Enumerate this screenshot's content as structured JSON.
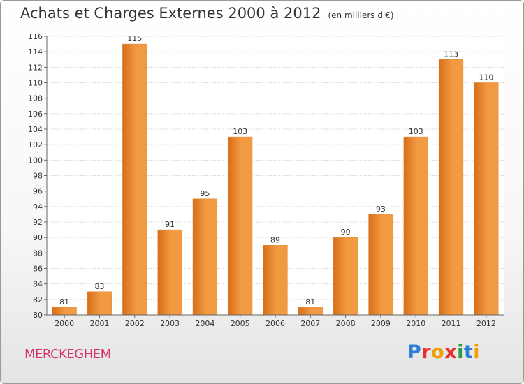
{
  "chart_data": {
    "type": "bar",
    "title": "Achats et Charges Externes 2000 à 2012",
    "subtitle": "(en milliers d'€)",
    "categories": [
      "2000",
      "2001",
      "2002",
      "2003",
      "2004",
      "2005",
      "2006",
      "2007",
      "2008",
      "2009",
      "2010",
      "2011",
      "2012"
    ],
    "values": [
      81,
      83,
      115,
      91,
      95,
      103,
      89,
      81,
      90,
      93,
      103,
      113,
      110
    ],
    "ylim": [
      80,
      116
    ],
    "yticks": [
      80,
      82,
      84,
      86,
      88,
      90,
      92,
      94,
      96,
      98,
      100,
      102,
      104,
      106,
      108,
      110,
      112,
      114,
      116
    ],
    "grid": true,
    "bar_color": "#f29a42",
    "bar_color_dark": "#d86e18"
  },
  "footer": {
    "commune": "MERCKEGHEM",
    "logo_letters": [
      {
        "ch": "P",
        "color": "#2e7fd6"
      },
      {
        "ch": "r",
        "color": "#e8302e"
      },
      {
        "ch": "o",
        "color": "#f0a000"
      },
      {
        "ch": "x",
        "color": "#e8302e"
      },
      {
        "ch": "i",
        "color": "#2e9d3a"
      },
      {
        "ch": "t",
        "color": "#2e7fd6"
      },
      {
        "ch": "i",
        "color": "#f0a000"
      }
    ]
  }
}
